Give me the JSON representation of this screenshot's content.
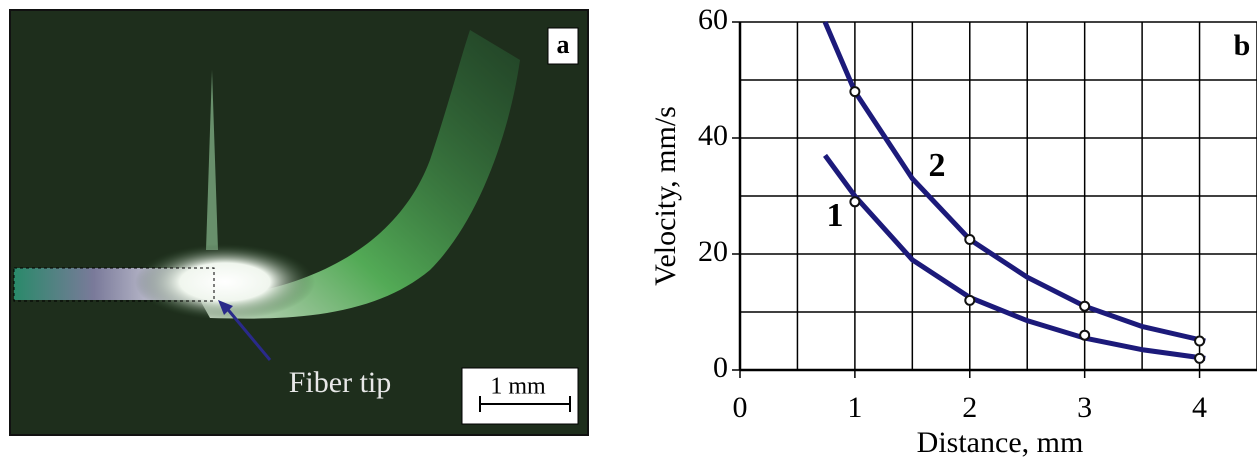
{
  "photo": {
    "label": "a",
    "annotation": "Fiber tip",
    "scale_bar": "1 mm"
  },
  "chart_data": {
    "type": "line",
    "label": "b",
    "xlabel": "Distance, mm",
    "ylabel": "Velocity, mm/s",
    "xlim": [
      0,
      4.5
    ],
    "ylim": [
      0,
      60
    ],
    "xticks": [
      0,
      1,
      2,
      3,
      4
    ],
    "yticks": [
      0,
      20,
      40,
      60
    ],
    "grid": true,
    "series": [
      {
        "name": "1",
        "color": "#1c1a7a",
        "x": [
          1,
          2,
          3,
          4
        ],
        "values": [
          29,
          12,
          6,
          2
        ],
        "fit_x": [
          0.74,
          1,
          1.5,
          2,
          2.5,
          3,
          3.5,
          4.05
        ],
        "fit_values": [
          37,
          30,
          19,
          12.5,
          8.5,
          5.5,
          3.5,
          2
        ]
      },
      {
        "name": "2",
        "color": "#1c1a7a",
        "x": [
          1,
          2,
          3,
          4
        ],
        "values": [
          48,
          22.5,
          11,
          5
        ],
        "fit_x": [
          0.74,
          1,
          1.5,
          2,
          2.5,
          3,
          3.5,
          4.05
        ],
        "fit_values": [
          60,
          48,
          33,
          22.5,
          16,
          11,
          7.5,
          5
        ]
      }
    ]
  }
}
